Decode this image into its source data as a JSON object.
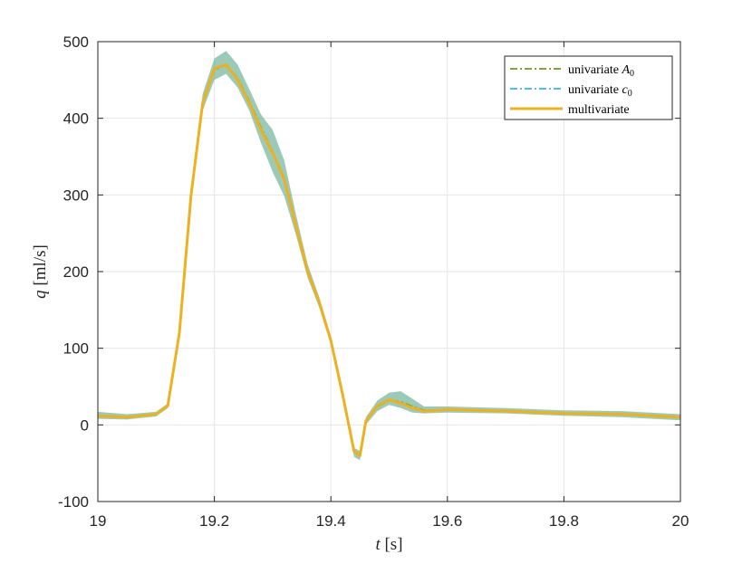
{
  "chart_data": {
    "type": "line",
    "xlabel": {
      "var": "t",
      "unit": "[s]"
    },
    "ylabel": {
      "var": "q",
      "unit": "[ml/s]"
    },
    "xlim": [
      19,
      20
    ],
    "ylim": [
      -100,
      500
    ],
    "xticks": [
      "19",
      "19.2",
      "19.4",
      "19.6",
      "19.8",
      "20"
    ],
    "yticks": [
      "-100",
      "0",
      "100",
      "200",
      "300",
      "400",
      "500"
    ],
    "grid": true,
    "legend_position": "top-right",
    "colors": {
      "band": "#5aa68a",
      "univariate_A0": "#77ac30",
      "univariate_c0": "#4dbeee",
      "multivariate": "#edb120"
    },
    "legend": [
      {
        "key": "univariate_A0",
        "text": "univariate ",
        "sym": "A",
        "sub": "0",
        "style": "dashdot"
      },
      {
        "key": "univariate_c0",
        "text": "univariate ",
        "sym": "c",
        "sub": "0",
        "style": "dashdot"
      },
      {
        "key": "multivariate",
        "text": "multivariate",
        "sym": "",
        "sub": "",
        "style": "solid"
      }
    ],
    "x": [
      19.0,
      19.05,
      19.1,
      19.12,
      19.14,
      19.16,
      19.18,
      19.2,
      19.22,
      19.24,
      19.26,
      19.28,
      19.3,
      19.32,
      19.34,
      19.36,
      19.38,
      19.4,
      19.42,
      19.44,
      19.45,
      19.46,
      19.48,
      19.5,
      19.52,
      19.54,
      19.56,
      19.6,
      19.7,
      19.8,
      19.9,
      20.0
    ],
    "series": [
      {
        "key": "multivariate",
        "values": [
          12,
          10,
          14,
          25,
          120,
          300,
          420,
          465,
          470,
          450,
          420,
          385,
          355,
          320,
          260,
          200,
          160,
          110,
          40,
          -35,
          -40,
          5,
          25,
          33,
          28,
          22,
          18,
          20,
          18,
          15,
          14,
          10
        ]
      },
      {
        "key": "univariate_A0",
        "values": [
          12,
          10,
          14,
          25,
          120,
          300,
          420,
          463,
          470,
          452,
          422,
          388,
          356,
          322,
          262,
          202,
          160,
          110,
          40,
          -35,
          -40,
          5,
          24,
          32,
          30,
          24,
          19,
          20,
          18,
          15,
          14,
          10
        ]
      },
      {
        "key": "univariate_c0",
        "values": [
          12,
          10,
          14,
          25,
          120,
          300,
          420,
          464,
          470,
          451,
          421,
          386,
          355,
          321,
          261,
          201,
          160,
          110,
          40,
          -35,
          -40,
          5,
          25,
          33,
          29,
          23,
          18,
          20,
          18,
          15,
          14,
          10
        ]
      }
    ],
    "band": {
      "upper": [
        17,
        14,
        17,
        28,
        126,
        310,
        432,
        478,
        488,
        470,
        438,
        405,
        385,
        345,
        275,
        210,
        167,
        116,
        46,
        -30,
        -34,
        10,
        32,
        42,
        44,
        34,
        24,
        24,
        22,
        19,
        18,
        14
      ],
      "lower": [
        8,
        7,
        11,
        22,
        114,
        292,
        410,
        450,
        458,
        440,
        410,
        368,
        330,
        298,
        248,
        192,
        153,
        104,
        35,
        -42,
        -46,
        0,
        18,
        26,
        22,
        16,
        15,
        16,
        15,
        12,
        10,
        6
      ]
    }
  }
}
